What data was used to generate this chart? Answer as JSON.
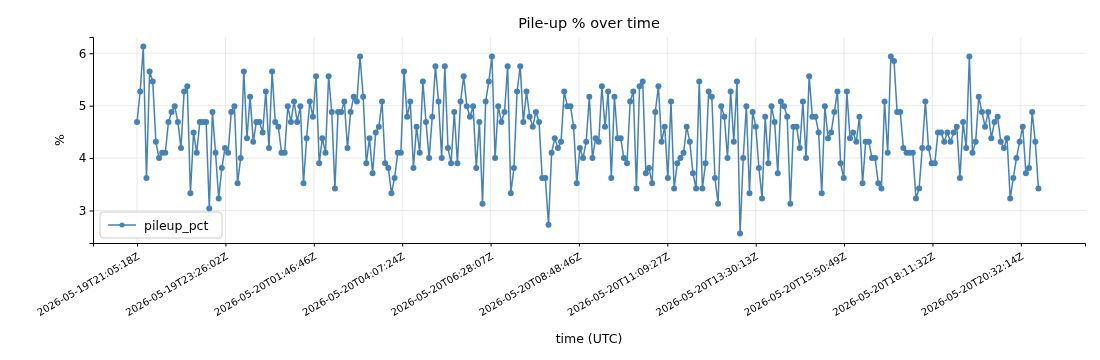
{
  "chart_data": {
    "type": "line",
    "title": "Pile-up % over time",
    "xlabel": "time (UTC)",
    "ylabel": "%",
    "xlim": [
      "2026-05-19T19:55:12",
      "2026-05-20T22:14:24"
    ],
    "ylim": [
      2.38,
      6.31
    ],
    "xticks": [
      {
        "value": "2026-05-19T21:05:18",
        "label": "2026-05-19T21:05:18Z"
      },
      {
        "value": "2026-05-19T23:26:02",
        "label": "2026-05-19T23:26:02Z"
      },
      {
        "value": "2026-05-20T01:46:46",
        "label": "2026-05-20T01:46:46Z"
      },
      {
        "value": "2026-05-20T04:07:24",
        "label": "2026-05-20T04:07:24Z"
      },
      {
        "value": "2026-05-20T06:28:07",
        "label": "2026-05-20T06:28:07Z"
      },
      {
        "value": "2026-05-20T08:48:46",
        "label": "2026-05-20T08:48:46Z"
      },
      {
        "value": "2026-05-20T11:09:27",
        "label": "2026-05-20T11:09:27Z"
      },
      {
        "value": "2026-05-20T13:30:13",
        "label": "2026-05-20T13:30:13Z"
      },
      {
        "value": "2026-05-20T15:50:49",
        "label": "2026-05-20T15:50:49Z"
      },
      {
        "value": "2026-05-20T18:11:32",
        "label": "2026-05-20T18:11:32Z"
      },
      {
        "value": "2026-05-20T20:32:14",
        "label": "2026-05-20T20:32:14Z"
      }
    ],
    "yticks": [
      3,
      4,
      5,
      6
    ],
    "grid": true,
    "legend": "bottom left",
    "marker": "circle",
    "line_style": "solid",
    "x": [
      "2026-05-19T21:05:18",
      "2026-05-19T21:10:18",
      "2026-05-19T21:15:18",
      "2026-05-19T21:20:18",
      "2026-05-19T21:25:18",
      "2026-05-19T21:30:18",
      "2026-05-19T21:35:18",
      "2026-05-19T21:40:18",
      "2026-05-19T21:45:18",
      "2026-05-19T21:50:18",
      "2026-05-19T21:55:18",
      "2026-05-19T22:00:18",
      "2026-05-19T22:05:18",
      "2026-05-19T22:10:18",
      "2026-05-19T22:15:18",
      "2026-05-19T22:20:18",
      "2026-05-19T22:25:18",
      "2026-05-19T22:30:18",
      "2026-05-19T22:35:18",
      "2026-05-19T22:40:18",
      "2026-05-19T22:45:18",
      "2026-05-19T22:50:18",
      "2026-05-19T22:55:18",
      "2026-05-19T23:00:18",
      "2026-05-19T23:05:18",
      "2026-05-19T23:10:18",
      "2026-05-19T23:15:18",
      "2026-05-19T23:20:18",
      "2026-05-19T23:25:18",
      "2026-05-19T23:30:18",
      "2026-05-19T23:35:18",
      "2026-05-19T23:40:18",
      "2026-05-19T23:45:18",
      "2026-05-19T23:50:18",
      "2026-05-19T23:55:18",
      "2026-05-20T00:00:18",
      "2026-05-20T00:05:18",
      "2026-05-20T00:10:18",
      "2026-05-20T00:15:18",
      "2026-05-20T00:20:18",
      "2026-05-20T00:25:18",
      "2026-05-20T00:30:18",
      "2026-05-20T00:35:18",
      "2026-05-20T00:40:18",
      "2026-05-20T00:45:18",
      "2026-05-20T00:50:18",
      "2026-05-20T00:55:18",
      "2026-05-20T01:00:18",
      "2026-05-20T01:05:18",
      "2026-05-20T01:10:18",
      "2026-05-20T01:15:18",
      "2026-05-20T01:20:18",
      "2026-05-20T01:25:18",
      "2026-05-20T01:30:18",
      "2026-05-20T01:35:18",
      "2026-05-20T01:40:18",
      "2026-05-20T01:45:18",
      "2026-05-20T01:50:18",
      "2026-05-20T01:55:18",
      "2026-05-20T02:00:18",
      "2026-05-20T02:05:18",
      "2026-05-20T02:10:18",
      "2026-05-20T02:15:18",
      "2026-05-20T02:20:18",
      "2026-05-20T02:25:18",
      "2026-05-20T02:30:18",
      "2026-05-20T02:35:18",
      "2026-05-20T02:40:18",
      "2026-05-20T02:45:18",
      "2026-05-20T02:50:18",
      "2026-05-20T02:55:18",
      "2026-05-20T03:00:18",
      "2026-05-20T03:05:18",
      "2026-05-20T03:10:18",
      "2026-05-20T03:15:18",
      "2026-05-20T03:20:18",
      "2026-05-20T03:25:18",
      "2026-05-20T03:30:18",
      "2026-05-20T03:35:18",
      "2026-05-20T03:40:18",
      "2026-05-20T03:45:18",
      "2026-05-20T03:50:18",
      "2026-05-20T03:55:18",
      "2026-05-20T04:00:18",
      "2026-05-20T04:05:18",
      "2026-05-20T04:10:18",
      "2026-05-20T04:15:18",
      "2026-05-20T04:20:18",
      "2026-05-20T04:25:18",
      "2026-05-20T04:30:18",
      "2026-05-20T04:35:18",
      "2026-05-20T04:40:18",
      "2026-05-20T04:45:18",
      "2026-05-20T04:50:18",
      "2026-05-20T04:55:18",
      "2026-05-20T05:00:18",
      "2026-05-20T05:05:18",
      "2026-05-20T05:10:18",
      "2026-05-20T05:15:18",
      "2026-05-20T05:20:18",
      "2026-05-20T05:25:18",
      "2026-05-20T05:30:18",
      "2026-05-20T05:35:18",
      "2026-05-20T05:40:18",
      "2026-05-20T05:45:18",
      "2026-05-20T05:50:18",
      "2026-05-20T05:55:18",
      "2026-05-20T06:00:18",
      "2026-05-20T06:05:18",
      "2026-05-20T06:10:18",
      "2026-05-20T06:15:18",
      "2026-05-20T06:20:18",
      "2026-05-20T06:25:18",
      "2026-05-20T06:30:18",
      "2026-05-20T06:35:18",
      "2026-05-20T06:40:18",
      "2026-05-20T06:45:18",
      "2026-05-20T06:50:18",
      "2026-05-20T06:55:18",
      "2026-05-20T07:00:18",
      "2026-05-20T07:05:18",
      "2026-05-20T07:10:18",
      "2026-05-20T07:15:18",
      "2026-05-20T07:20:18",
      "2026-05-20T07:25:18",
      "2026-05-20T07:30:18",
      "2026-05-20T07:35:18",
      "2026-05-20T07:40:18",
      "2026-05-20T07:45:18",
      "2026-05-20T07:50:18",
      "2026-05-20T07:55:18",
      "2026-05-20T08:00:18",
      "2026-05-20T08:05:18",
      "2026-05-20T08:10:18",
      "2026-05-20T08:15:18",
      "2026-05-20T08:20:18",
      "2026-05-20T08:25:18",
      "2026-05-20T08:30:18",
      "2026-05-20T08:35:18",
      "2026-05-20T08:40:18",
      "2026-05-20T08:45:18",
      "2026-05-20T08:50:18",
      "2026-05-20T08:55:18",
      "2026-05-20T09:00:18",
      "2026-05-20T09:05:18",
      "2026-05-20T09:10:18",
      "2026-05-20T09:15:18",
      "2026-05-20T09:20:18",
      "2026-05-20T09:25:18",
      "2026-05-20T09:30:18",
      "2026-05-20T09:35:18",
      "2026-05-20T09:40:18",
      "2026-05-20T09:45:18",
      "2026-05-20T09:50:18",
      "2026-05-20T09:55:18",
      "2026-05-20T10:00:18",
      "2026-05-20T10:05:18",
      "2026-05-20T10:10:18",
      "2026-05-20T10:15:18",
      "2026-05-20T10:20:18",
      "2026-05-20T10:25:18",
      "2026-05-20T10:30:18",
      "2026-05-20T10:35:18",
      "2026-05-20T10:40:18",
      "2026-05-20T10:45:18",
      "2026-05-20T10:50:18",
      "2026-05-20T10:55:18",
      "2026-05-20T11:00:18",
      "2026-05-20T11:05:18",
      "2026-05-20T11:10:18",
      "2026-05-20T11:15:18",
      "2026-05-20T11:20:18",
      "2026-05-20T11:25:18",
      "2026-05-20T11:30:18",
      "2026-05-20T11:35:18",
      "2026-05-20T11:40:18",
      "2026-05-20T11:45:18",
      "2026-05-20T11:50:18",
      "2026-05-20T11:55:18",
      "2026-05-20T12:00:18",
      "2026-05-20T12:05:18",
      "2026-05-20T12:10:18",
      "2026-05-20T12:15:18",
      "2026-05-20T12:20:18",
      "2026-05-20T12:25:18",
      "2026-05-20T12:30:18",
      "2026-05-20T12:35:18",
      "2026-05-20T12:40:18",
      "2026-05-20T12:45:18",
      "2026-05-20T12:50:18",
      "2026-05-20T12:55:18",
      "2026-05-20T13:00:18",
      "2026-05-20T13:05:18",
      "2026-05-20T13:10:18",
      "2026-05-20T13:15:18",
      "2026-05-20T13:20:18",
      "2026-05-20T13:25:18",
      "2026-05-20T13:30:18",
      "2026-05-20T13:35:18",
      "2026-05-20T13:40:18",
      "2026-05-20T13:45:18",
      "2026-05-20T13:50:18",
      "2026-05-20T13:55:18",
      "2026-05-20T14:00:18",
      "2026-05-20T14:05:18",
      "2026-05-20T14:10:18",
      "2026-05-20T14:15:18",
      "2026-05-20T14:20:18",
      "2026-05-20T14:25:18",
      "2026-05-20T14:30:18",
      "2026-05-20T14:35:18",
      "2026-05-20T14:40:18",
      "2026-05-20T14:45:18",
      "2026-05-20T14:50:18",
      "2026-05-20T14:55:18",
      "2026-05-20T15:00:18",
      "2026-05-20T15:05:18",
      "2026-05-20T15:10:18",
      "2026-05-20T15:15:18",
      "2026-05-20T15:20:18",
      "2026-05-20T15:25:18",
      "2026-05-20T15:30:18",
      "2026-05-20T15:35:18",
      "2026-05-20T15:40:18",
      "2026-05-20T15:45:18",
      "2026-05-20T15:50:18",
      "2026-05-20T15:55:18",
      "2026-05-20T16:00:18",
      "2026-05-20T16:05:18",
      "2026-05-20T16:10:18",
      "2026-05-20T16:15:18",
      "2026-05-20T16:20:18",
      "2026-05-20T16:25:18",
      "2026-05-20T16:30:18",
      "2026-05-20T16:35:18",
      "2026-05-20T16:40:18",
      "2026-05-20T16:45:18",
      "2026-05-20T16:50:18",
      "2026-05-20T16:55:18",
      "2026-05-20T17:00:18",
      "2026-05-20T17:05:18",
      "2026-05-20T17:10:18",
      "2026-05-20T17:15:18",
      "2026-05-20T17:20:18",
      "2026-05-20T17:25:18",
      "2026-05-20T17:30:18",
      "2026-05-20T17:35:18",
      "2026-05-20T17:40:18",
      "2026-05-20T17:45:18",
      "2026-05-20T17:50:18",
      "2026-05-20T17:55:18",
      "2026-05-20T18:00:18",
      "2026-05-20T18:05:18",
      "2026-05-20T18:10:18",
      "2026-05-20T18:15:18",
      "2026-05-20T18:20:18",
      "2026-05-20T18:25:18",
      "2026-05-20T18:30:18",
      "2026-05-20T18:35:18",
      "2026-05-20T18:40:18",
      "2026-05-20T18:45:18",
      "2026-05-20T18:50:18",
      "2026-05-20T18:55:18",
      "2026-05-20T19:00:18",
      "2026-05-20T19:05:18",
      "2026-05-20T19:10:18",
      "2026-05-20T19:15:18",
      "2026-05-20T19:20:18",
      "2026-05-20T19:25:18",
      "2026-05-20T19:30:18",
      "2026-05-20T19:35:18",
      "2026-05-20T19:40:18",
      "2026-05-20T19:45:18",
      "2026-05-20T19:50:18",
      "2026-05-20T19:55:18",
      "2026-05-20T20:00:18",
      "2026-05-20T20:05:18",
      "2026-05-20T20:10:18",
      "2026-05-20T20:15:18",
      "2026-05-20T20:20:18",
      "2026-05-20T20:25:18",
      "2026-05-20T20:30:18",
      "2026-05-20T20:35:18",
      "2026-05-20T20:40:18",
      "2026-05-20T20:45:18",
      "2026-05-20T20:50:18",
      "2026-05-20T20:55:18",
      "2026-05-20T21:00:18"
    ],
    "series": [
      {
        "name": "pileup_pct",
        "color": "#4682b4",
        "values": [
          4.69,
          5.27,
          6.13,
          3.62,
          5.65,
          5.46,
          4.31,
          4.0,
          4.1,
          4.1,
          4.69,
          4.88,
          4.99,
          4.69,
          4.19,
          5.27,
          5.37,
          3.33,
          4.49,
          4.1,
          4.69,
          4.69,
          4.69,
          3.04,
          4.88,
          4.1,
          3.23,
          3.81,
          4.19,
          4.1,
          4.88,
          4.99,
          3.52,
          4.0,
          5.65,
          4.38,
          5.17,
          4.31,
          4.69,
          4.69,
          4.49,
          5.27,
          4.19,
          5.65,
          4.69,
          4.6,
          4.1,
          4.1,
          4.99,
          4.69,
          5.08,
          4.69,
          4.99,
          3.52,
          4.38,
          5.08,
          4.79,
          5.56,
          3.9,
          4.38,
          4.1,
          5.56,
          4.88,
          3.42,
          4.88,
          4.88,
          5.08,
          4.19,
          4.88,
          5.17,
          5.08,
          5.94,
          5.17,
          3.9,
          4.38,
          3.71,
          4.49,
          4.6,
          5.08,
          3.9,
          3.81,
          3.33,
          3.62,
          4.1,
          4.1,
          5.65,
          4.79,
          5.08,
          3.81,
          4.6,
          4.1,
          5.46,
          4.69,
          4.0,
          4.79,
          5.75,
          5.08,
          4.0,
          5.75,
          4.19,
          3.9,
          4.88,
          3.9,
          5.08,
          5.56,
          4.99,
          4.79,
          4.99,
          3.81,
          4.69,
          3.13,
          5.08,
          5.46,
          5.94,
          4.0,
          4.99,
          4.69,
          4.88,
          5.75,
          3.33,
          3.81,
          5.27,
          5.75,
          4.69,
          5.27,
          4.79,
          4.6,
          4.88,
          4.69,
          3.62,
          3.62,
          2.73,
          4.1,
          4.38,
          4.19,
          4.31,
          5.27,
          4.99,
          4.99,
          4.6,
          3.52,
          4.19,
          4.0,
          4.31,
          5.17,
          4.0,
          4.38,
          4.31,
          5.37,
          4.6,
          5.27,
          3.62,
          5.17,
          4.38,
          4.38,
          4.0,
          3.9,
          5.08,
          5.27,
          3.42,
          5.37,
          5.46,
          3.71,
          3.81,
          3.52,
          4.88,
          5.37,
          4.31,
          4.6,
          3.62,
          5.08,
          3.42,
          3.9,
          4.0,
          4.1,
          4.6,
          4.31,
          3.71,
          3.42,
          5.46,
          3.42,
          3.9,
          5.27,
          5.17,
          3.62,
          3.13,
          4.99,
          4.79,
          4.0,
          5.27,
          4.31,
          5.46,
          2.56,
          4.0,
          4.99,
          3.33,
          4.88,
          4.6,
          3.81,
          3.23,
          4.79,
          3.9,
          4.99,
          4.69,
          3.71,
          5.08,
          4.99,
          4.79,
          3.13,
          4.6,
          4.6,
          4.19,
          5.08,
          4.0,
          5.56,
          4.79,
          4.79,
          4.49,
          3.33,
          4.99,
          4.38,
          4.49,
          4.88,
          5.27,
          3.9,
          3.62,
          5.27,
          4.38,
          4.49,
          4.31,
          4.79,
          3.52,
          4.31,
          4.31,
          4.0,
          4.0,
          3.52,
          3.42,
          5.08,
          4.1,
          5.94,
          5.85,
          4.88,
          4.88,
          4.19,
          4.1,
          4.1,
          4.1,
          3.23,
          3.42,
          4.19,
          5.08,
          4.19,
          3.9,
          3.9,
          4.49,
          4.49,
          4.31,
          4.49,
          4.31,
          4.49,
          4.6,
          3.62,
          4.69,
          4.19,
          5.94,
          4.1,
          4.31,
          5.17,
          4.88,
          4.6,
          4.88,
          4.38,
          4.69,
          4.79,
          4.31,
          4.19,
          4.38,
          3.23,
          3.62,
          4.0,
          4.31,
          4.6,
          3.71,
          3.81,
          4.88,
          4.31,
          3.42
        ]
      }
    ]
  }
}
